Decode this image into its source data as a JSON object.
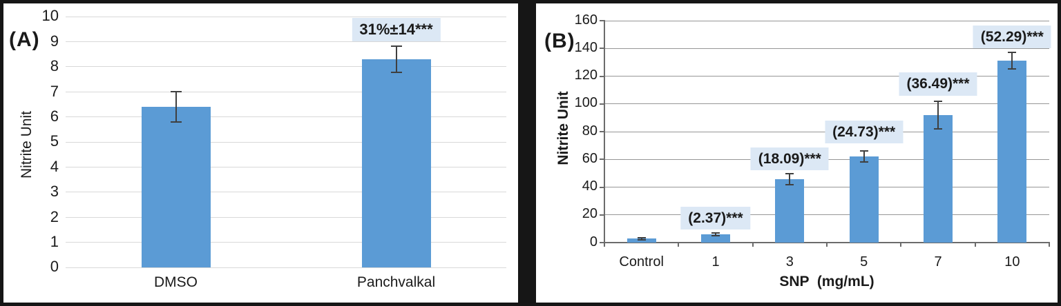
{
  "colors": {
    "bar_fill": "#5b9bd5",
    "annotation_bg": "#dce8f5",
    "grid_panel_a": "#d8d8d8",
    "grid_panel_b": "#969696",
    "axis_panel_b": "#6b6b6b",
    "error_bar": "#3f3f3f",
    "frame_black": "#161616",
    "panel_bg": "#ffffff",
    "text": "#1a1a1a"
  },
  "chart_data": [
    {
      "type": "bar",
      "panel_label": "(A)",
      "title": "",
      "xlabel": "",
      "ylabel": "Nitrite Unit",
      "categories": [
        "DMSO",
        "Panchvalkal"
      ],
      "values": [
        6.4,
        8.3
      ],
      "error_bars": [
        0.6,
        0.52
      ],
      "annotations": [
        null,
        {
          "text": "31%±14***",
          "bottom_y": 9.0
        }
      ],
      "ylim": [
        0,
        10
      ],
      "ytick_step": 1,
      "grid": true,
      "legend": false
    },
    {
      "type": "bar",
      "panel_label": "(B)",
      "title": "",
      "xlabel": "SNP  (mg/mL)",
      "ylabel": "Nitrite Unit",
      "categories": [
        "Control",
        "1",
        "3",
        "5",
        "7",
        "10"
      ],
      "values": [
        2.8,
        6,
        45.5,
        62,
        92,
        131
      ],
      "error_bars": [
        0.6,
        1.2,
        4,
        4,
        10,
        6
      ],
      "annotations": [
        null,
        {
          "text": "(2.37)***",
          "bottom_y": 9.5
        },
        {
          "text": "(18.09)***",
          "bottom_y": 52
        },
        {
          "text": "(24.73)***",
          "bottom_y": 71.5
        },
        {
          "text": "(36.49)***",
          "bottom_y": 106
        },
        {
          "text": "(52.29)***",
          "bottom_y": 140
        }
      ],
      "ylim": [
        0,
        160
      ],
      "ytick_step": 20,
      "grid": true,
      "legend": false
    }
  ]
}
